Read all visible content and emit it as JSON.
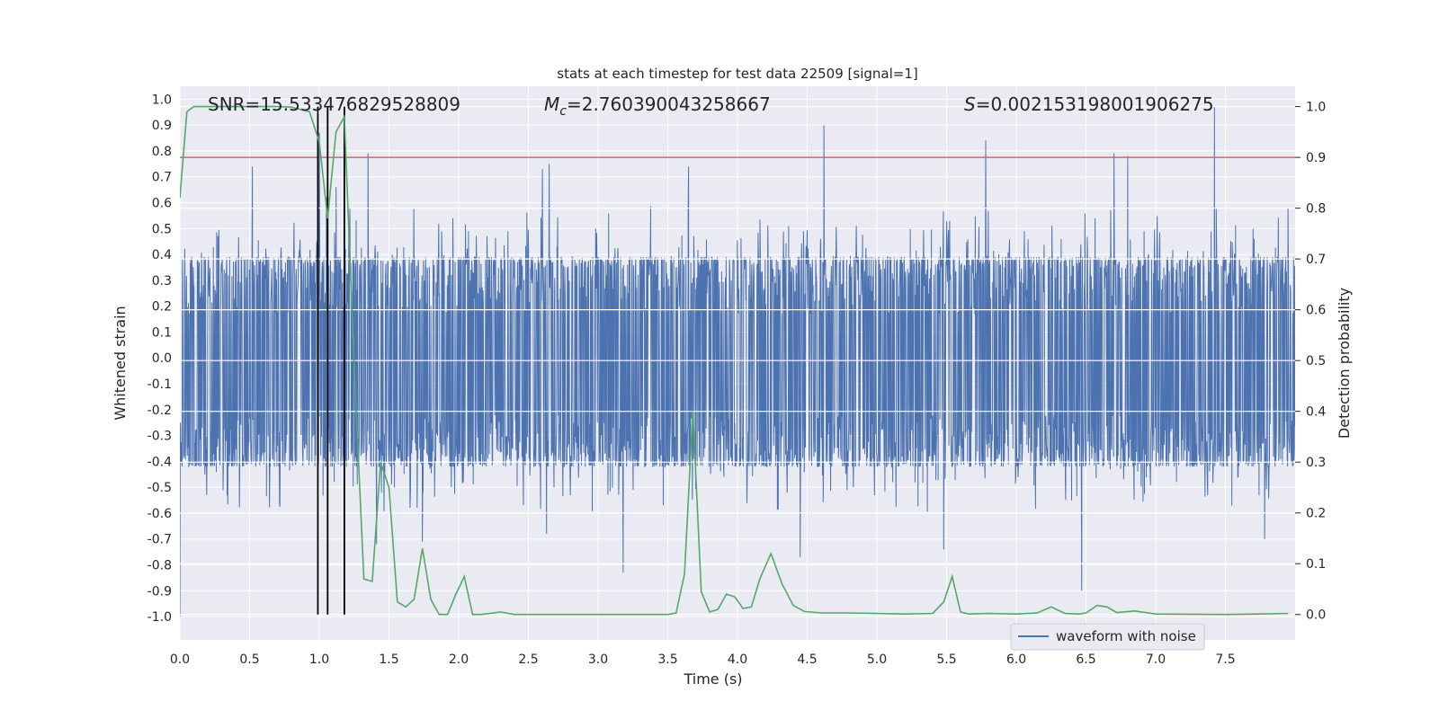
{
  "chart_data": {
    "type": "line",
    "title": "stats at each timestep for test data 22509 [signal=1]",
    "xlabel": "Time (s)",
    "ylabel_left": "Whitened strain",
    "ylabel_right": "Detection probability",
    "xlim": [
      0.0,
      8.0
    ],
    "ylim_left": [
      -1.09,
      1.05
    ],
    "ylim_right": [
      -0.05,
      1.04
    ],
    "xticks": [
      0.0,
      0.5,
      1.0,
      1.5,
      2.0,
      2.5,
      3.0,
      3.5,
      4.0,
      4.5,
      5.0,
      5.5,
      6.0,
      6.5,
      7.0,
      7.5
    ],
    "xtick_labels": [
      "0.0",
      "0.5",
      "1.0",
      "1.5",
      "2.0",
      "2.5",
      "3.0",
      "3.5",
      "4.0",
      "4.5",
      "5.0",
      "5.5",
      "6.0",
      "6.5",
      "7.0",
      "7.5"
    ],
    "yticks_left": [
      1.0,
      0.9,
      0.8,
      0.7,
      0.6,
      0.5,
      0.4,
      0.3,
      0.2,
      0.1,
      0.0,
      -0.1,
      -0.2,
      -0.3,
      -0.4,
      -0.5,
      -0.6,
      -0.7,
      -0.8,
      -0.9,
      -1.0
    ],
    "ytick_labels_left": [
      "1.0",
      "0.9",
      "0.8",
      "0.7",
      "0.6",
      "0.5",
      "0.4",
      "0.3",
      "0.2",
      "0.1",
      "0.0",
      "-0.1",
      "-0.2",
      "-0.3",
      "-0.4",
      "-0.5",
      "-0.6",
      "-0.7",
      "-0.8",
      "-0.9",
      "-1.0"
    ],
    "yticks_right": [
      1.0,
      0.9,
      0.8,
      0.7,
      0.6,
      0.5,
      0.4,
      0.3,
      0.2,
      0.1,
      0.0
    ],
    "ytick_labels_right": [
      "1.0",
      "0.9",
      "0.8",
      "0.7",
      "0.6",
      "0.5",
      "0.4",
      "0.3",
      "0.2",
      "0.1",
      "0.0"
    ],
    "annotations": {
      "snr": "SNR=15.533476829528809",
      "mc_symbol": "M",
      "mc_subscript": "c",
      "mc_value": "=2.760390043258667",
      "s_symbol": "S",
      "s_value": "=0.002153198001906275"
    },
    "legend": {
      "label": "waveform with noise",
      "position": "lower-right"
    },
    "threshold": {
      "value": 0.9,
      "axis": "right"
    },
    "vertical_markers": [
      0.99,
      1.06,
      1.18
    ],
    "waveform": {
      "name": "waveform with noise",
      "n_samples": 3000,
      "band": [
        -0.42,
        0.39
      ],
      "seed": 22509,
      "spikes": [
        {
          "t": 0.0,
          "v": -1.0
        },
        {
          "t": 0.52,
          "v": 0.74
        },
        {
          "t": 1.0,
          "v": 0.87
        },
        {
          "t": 1.05,
          "v": 0.62
        },
        {
          "t": 1.12,
          "v": 0.66
        },
        {
          "t": 1.18,
          "v": -0.46
        },
        {
          "t": 1.35,
          "v": 0.79
        },
        {
          "t": 1.41,
          "v": -0.72
        },
        {
          "t": 1.74,
          "v": -0.71
        },
        {
          "t": 2.6,
          "v": 0.73
        },
        {
          "t": 2.63,
          "v": -0.68
        },
        {
          "t": 2.65,
          "v": 0.75
        },
        {
          "t": 3.18,
          "v": -0.83
        },
        {
          "t": 3.65,
          "v": 0.74
        },
        {
          "t": 4.45,
          "v": -0.77
        },
        {
          "t": 4.62,
          "v": 0.9
        },
        {
          "t": 5.48,
          "v": -0.74
        },
        {
          "t": 5.78,
          "v": 0.84
        },
        {
          "t": 6.47,
          "v": -0.9
        },
        {
          "t": 6.7,
          "v": 0.79
        },
        {
          "t": 6.8,
          "v": 0.78
        },
        {
          "t": 7.42,
          "v": 0.97
        },
        {
          "t": 7.78,
          "v": -0.7
        },
        {
          "t": 7.95,
          "v": 0.58
        }
      ]
    },
    "detection_probability": {
      "name": "Detection probability",
      "x": [
        0.0,
        0.05,
        0.1,
        0.2,
        0.3,
        0.4,
        0.5,
        0.6,
        0.7,
        0.8,
        0.93,
        1.0,
        1.06,
        1.12,
        1.18,
        1.25,
        1.32,
        1.38,
        1.44,
        1.5,
        1.56,
        1.62,
        1.68,
        1.74,
        1.8,
        1.86,
        1.92,
        1.98,
        2.04,
        2.1,
        2.16,
        2.22,
        2.3,
        2.4,
        2.6,
        2.8,
        3.0,
        3.2,
        3.4,
        3.5,
        3.56,
        3.62,
        3.68,
        3.74,
        3.8,
        3.86,
        3.92,
        3.98,
        4.04,
        4.1,
        4.16,
        4.24,
        4.32,
        4.4,
        4.48,
        4.6,
        4.8,
        5.0,
        5.2,
        5.4,
        5.48,
        5.54,
        5.6,
        5.66,
        5.8,
        6.0,
        6.15,
        6.25,
        6.35,
        6.45,
        6.5,
        6.58,
        6.65,
        6.72,
        6.85,
        7.0,
        7.5,
        7.95
      ],
      "y": [
        0.82,
        0.99,
        1.0,
        1.0,
        1.0,
        1.0,
        1.0,
        1.0,
        1.0,
        0.999,
        0.99,
        0.93,
        0.78,
        0.95,
        0.98,
        0.49,
        0.07,
        0.065,
        0.3,
        0.25,
        0.025,
        0.015,
        0.03,
        0.13,
        0.03,
        0.0,
        0.0,
        0.04,
        0.075,
        0.0,
        0.0,
        0.002,
        0.005,
        0.0,
        0.0,
        0.0,
        0.0,
        0.0,
        0.0,
        0.0,
        0.003,
        0.08,
        0.4,
        0.045,
        0.005,
        0.01,
        0.04,
        0.035,
        0.012,
        0.015,
        0.07,
        0.12,
        0.06,
        0.018,
        0.006,
        0.003,
        0.003,
        0.002,
        0.001,
        0.002,
        0.025,
        0.075,
        0.005,
        0.001,
        0.002,
        0.001,
        0.003,
        0.015,
        0.002,
        0.001,
        0.003,
        0.018,
        0.015,
        0.004,
        0.007,
        0.001,
        0.0,
        0.002
      ]
    },
    "colors": {
      "background": "#eaeaf2",
      "grid": "#ffffff",
      "waveform": "#4c72b0",
      "probability": "#55a868",
      "threshold": "#c44e52",
      "markers": "#000000",
      "text": "#262626"
    }
  }
}
